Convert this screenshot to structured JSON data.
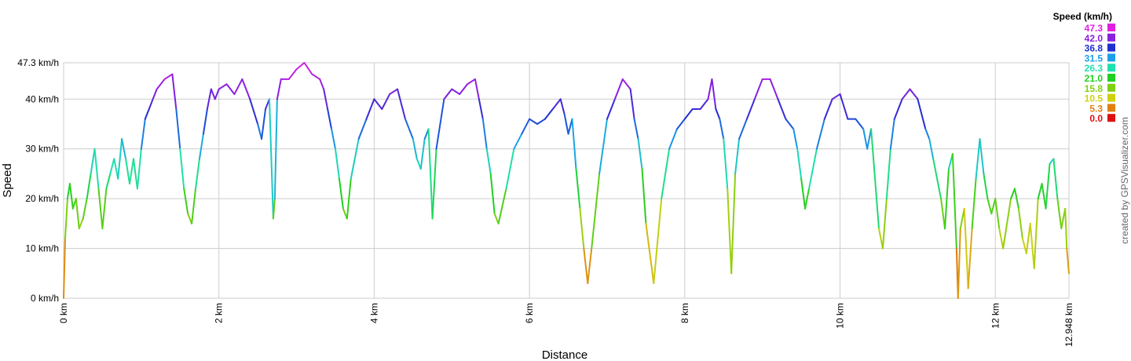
{
  "chart_data": {
    "type": "line",
    "title": "",
    "xlabel": "Distance",
    "ylabel": "Speed",
    "xlim": [
      0,
      12.948
    ],
    "ylim": [
      0,
      47.3
    ],
    "x_ticks": [
      {
        "value": 0,
        "label": "0 km"
      },
      {
        "value": 2,
        "label": "2 km"
      },
      {
        "value": 4,
        "label": "4 km"
      },
      {
        "value": 6,
        "label": "6 km"
      },
      {
        "value": 8,
        "label": "8 km"
      },
      {
        "value": 10,
        "label": "10 km"
      },
      {
        "value": 12,
        "label": "12 km"
      },
      {
        "value": 12.948,
        "label": "12.948 km"
      }
    ],
    "y_ticks": [
      {
        "value": 0,
        "label": "0 km/h"
      },
      {
        "value": 10,
        "label": "10 km/h"
      },
      {
        "value": 20,
        "label": "20 km/h"
      },
      {
        "value": 30,
        "label": "30 km/h"
      },
      {
        "value": 40,
        "label": "40 km/h"
      },
      {
        "value": 47.3,
        "label": "47.3 km/h"
      }
    ],
    "grid": true,
    "legend": {
      "title": "Speed (km/h)",
      "placement": "top-right",
      "entries": [
        {
          "label": "47.3",
          "color": "#e020e0"
        },
        {
          "label": "42.0",
          "color": "#8a20e0"
        },
        {
          "label": "36.8",
          "color": "#1f2fd0"
        },
        {
          "label": "31.5",
          "color": "#1aa0e8"
        },
        {
          "label": "26.3",
          "color": "#20e0b0"
        },
        {
          "label": "21.0",
          "color": "#20d020"
        },
        {
          "label": "15.8",
          "color": "#80d010"
        },
        {
          "label": "10.5",
          "color": "#d0d010"
        },
        {
          "label": "5.3",
          "color": "#e08010"
        },
        {
          "label": "0.0",
          "color": "#e01010"
        }
      ]
    },
    "series": [
      {
        "x": [
          0,
          0.02,
          0.05,
          0.08,
          0.12,
          0.16,
          0.2,
          0.25,
          0.3,
          0.35,
          0.4,
          0.45,
          0.5,
          0.55,
          0.6,
          0.65,
          0.7,
          0.75,
          0.8,
          0.85,
          0.9,
          0.95,
          1.0,
          1.05,
          1.1,
          1.15,
          1.2,
          1.3,
          1.4,
          1.45,
          1.5,
          1.55,
          1.6,
          1.65,
          1.7,
          1.75,
          1.8,
          1.85,
          1.9,
          1.95,
          2.0,
          2.1,
          2.2,
          2.3,
          2.4,
          2.5,
          2.55,
          2.6,
          2.65,
          2.7,
          2.72,
          2.75,
          2.8,
          2.9,
          3.0,
          3.1,
          3.2,
          3.3,
          3.35,
          3.4,
          3.45,
          3.5,
          3.55,
          3.6,
          3.65,
          3.7,
          3.8,
          3.9,
          4.0,
          4.1,
          4.2,
          4.3,
          4.4,
          4.5,
          4.55,
          4.6,
          4.65,
          4.7,
          4.75,
          4.8,
          4.9,
          5.0,
          5.1,
          5.2,
          5.3,
          5.35,
          5.4,
          5.45,
          5.5,
          5.55,
          5.6,
          5.7,
          5.8,
          5.9,
          6.0,
          6.1,
          6.2,
          6.3,
          6.4,
          6.45,
          6.5,
          6.55,
          6.6,
          6.65,
          6.7,
          6.75,
          6.8,
          6.9,
          7.0,
          7.1,
          7.2,
          7.3,
          7.35,
          7.4,
          7.45,
          7.5,
          7.6,
          7.7,
          7.8,
          7.9,
          8.0,
          8.1,
          8.2,
          8.3,
          8.35,
          8.4,
          8.45,
          8.5,
          8.55,
          8.6,
          8.65,
          8.7,
          8.8,
          8.9,
          9.0,
          9.1,
          9.2,
          9.3,
          9.4,
          9.45,
          9.5,
          9.55,
          9.6,
          9.7,
          9.8,
          9.9,
          10.0,
          10.1,
          10.2,
          10.3,
          10.35,
          10.4,
          10.5,
          10.55,
          10.6,
          10.65,
          10.7,
          10.8,
          10.9,
          11.0,
          11.1,
          11.15,
          11.2,
          11.3,
          11.35,
          11.4,
          11.45,
          11.5,
          11.52,
          11.55,
          11.6,
          11.65,
          11.7,
          11.75,
          11.8,
          11.85,
          11.9,
          11.95,
          12.0,
          12.05,
          12.1,
          12.2,
          12.25,
          12.3,
          12.35,
          12.4,
          12.45,
          12.5,
          12.55,
          12.6,
          12.65,
          12.7,
          12.75,
          12.8,
          12.85,
          12.9,
          12.92,
          12.948
        ],
        "y": [
          0,
          12,
          20,
          23,
          18,
          20,
          14,
          16,
          20,
          25,
          30,
          22,
          14,
          22,
          25,
          28,
          24,
          32,
          28,
          23,
          28,
          22,
          30,
          36,
          38,
          40,
          42,
          44,
          45,
          38,
          30,
          22,
          17,
          15,
          22,
          28,
          33,
          38,
          42,
          40,
          42,
          43,
          41,
          44,
          40,
          35,
          32,
          38,
          40,
          16,
          20,
          40,
          44,
          44,
          46,
          47.3,
          45,
          44,
          42,
          38,
          34,
          30,
          24,
          18,
          16,
          24,
          32,
          36,
          40,
          38,
          41,
          42,
          36,
          32,
          28,
          26,
          32,
          34,
          16,
          30,
          40,
          42,
          41,
          43,
          44,
          40,
          36,
          30,
          25,
          17,
          15,
          22,
          30,
          33,
          36,
          35,
          36,
          38,
          40,
          37,
          33,
          36,
          26,
          18,
          10,
          3,
          10,
          25,
          36,
          40,
          44,
          42,
          36,
          32,
          26,
          15,
          3,
          20,
          30,
          34,
          36,
          38,
          38,
          40,
          44,
          38,
          36,
          32,
          22,
          5,
          25,
          32,
          36,
          40,
          44,
          44,
          40,
          36,
          34,
          30,
          24,
          18,
          22,
          30,
          36,
          40,
          41,
          36,
          36,
          34,
          30,
          34,
          14,
          10,
          20,
          30,
          36,
          40,
          42,
          40,
          34,
          32,
          28,
          20,
          14,
          26,
          29,
          10,
          0,
          14,
          18,
          2,
          14,
          24,
          32,
          25,
          20,
          17,
          20,
          14,
          10,
          20,
          22,
          18,
          12,
          9,
          15,
          6,
          20,
          23,
          18,
          27,
          28,
          20,
          14,
          18,
          10,
          5
        ]
      }
    ]
  },
  "credit": "created by GPSVisualizer.com"
}
